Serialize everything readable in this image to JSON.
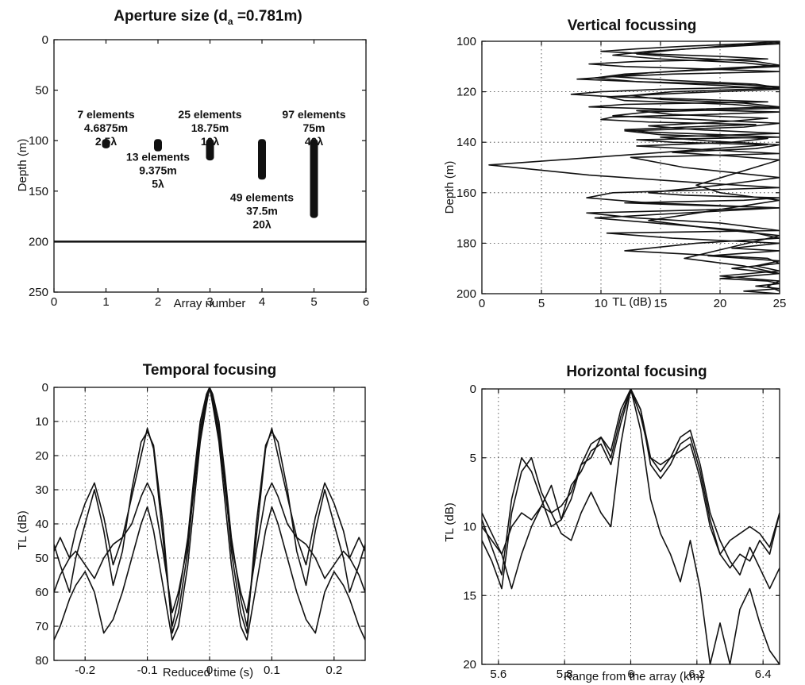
{
  "chart_data": [
    {
      "type": "scatter",
      "title": "Aperture size (d",
      "title_sub": "a",
      "title_tail": " =0.781m)",
      "xlabel": "Array number",
      "ylabel": "Depth (m)",
      "xlim": [
        0,
        6
      ],
      "ylim": [
        250,
        0
      ],
      "xticks": [
        0,
        1,
        2,
        3,
        4,
        5,
        6
      ],
      "yticks": [
        0,
        50,
        100,
        150,
        200,
        250
      ],
      "grid": false,
      "hline": 200,
      "series": [
        {
          "x": 1,
          "depth_from": 100,
          "depth_to": 106
        },
        {
          "x": 2,
          "depth_from": 100,
          "depth_to": 109
        },
        {
          "x": 3,
          "depth_from": 100,
          "depth_to": 118
        },
        {
          "x": 4,
          "depth_from": 100,
          "depth_to": 137
        },
        {
          "x": 5,
          "depth_from": 100,
          "depth_to": 175
        }
      ],
      "annotations": [
        {
          "x": 1.0,
          "y": 78,
          "lines": [
            "7 elements",
            "4.6875m",
            "2.5λ"
          ]
        },
        {
          "x": 2.0,
          "y": 120,
          "lines": [
            "13 elements",
            "9.375m",
            "5λ"
          ]
        },
        {
          "x": 3.0,
          "y": 78,
          "lines": [
            "25 elements",
            "18.75m",
            "10λ"
          ]
        },
        {
          "x": 4.0,
          "y": 160,
          "lines": [
            "49 elements",
            "37.5m",
            "20λ"
          ]
        },
        {
          "x": 5.0,
          "y": 78,
          "lines": [
            "97 elements",
            "75m",
            "40λ"
          ]
        }
      ]
    },
    {
      "type": "line",
      "title": "Vertical focussing",
      "xlabel": "TL (dB)",
      "ylabel": "Depth (m)",
      "xlim": [
        0,
        25
      ],
      "ylim": [
        200,
        100
      ],
      "xticks": [
        0,
        5,
        10,
        15,
        20,
        25
      ],
      "yticks": [
        100,
        120,
        140,
        160,
        180,
        200
      ],
      "grid": true,
      "series": [
        {
          "x": [
            25,
            22,
            17,
            13,
            10,
            14,
            20,
            24,
            13,
            9,
            12,
            19,
            25,
            16,
            11,
            8,
            13,
            21,
            25,
            15,
            10,
            7.5,
            11,
            18,
            24,
            12,
            9,
            16,
            25,
            19,
            11,
            10,
            14,
            23,
            17,
            12,
            14,
            20,
            25,
            13,
            16,
            24,
            0.6,
            9,
            18,
            25,
            11,
            8.8,
            14,
            25,
            17,
            9.5,
            22,
            25,
            18,
            12,
            24,
            25,
            21,
            25,
            20,
            24,
            25,
            23,
            25,
            22,
            25
          ],
          "y": [
            100,
            101,
            102,
            103,
            104,
            105,
            106,
            107,
            108,
            109,
            110,
            111,
            112,
            113,
            114,
            115,
            116,
            117,
            118,
            119,
            120,
            121,
            122,
            123,
            124,
            125,
            126,
            127,
            128,
            129,
            130,
            131,
            132,
            133,
            134,
            135,
            136,
            137,
            138,
            139,
            140,
            141,
            149,
            153,
            156,
            158,
            160,
            162,
            164,
            166,
            168,
            170,
            175,
            178,
            180,
            183,
            186,
            188,
            190,
            192,
            194,
            195,
            196,
            197,
            198,
            199,
            200
          ]
        },
        {
          "x": [
            25,
            19,
            14,
            11,
            15,
            22,
            25,
            18,
            12,
            9.5,
            13,
            20,
            25,
            17,
            10.5,
            12,
            21,
            25,
            14,
            11,
            18,
            25,
            22,
            12,
            15,
            24,
            21,
            13,
            19,
            25,
            12.5,
            17,
            25,
            20,
            14,
            17,
            25,
            22,
            12,
            18,
            25,
            8.8,
            13,
            20,
            25,
            10.5,
            16,
            25,
            21,
            25,
            19,
            25,
            23,
            25,
            20,
            25,
            24,
            25
          ],
          "y": [
            101,
            102.5,
            104,
            105.5,
            107,
            108.5,
            110,
            111.5,
            113,
            114.5,
            116,
            117.5,
            119,
            120.5,
            122,
            123.5,
            125,
            126.5,
            128,
            129.5,
            131,
            132.5,
            134,
            135.5,
            137,
            138.5,
            140,
            141.5,
            143,
            144.5,
            146,
            150,
            154,
            157,
            160,
            161,
            162,
            163,
            164,
            165,
            166,
            168,
            170,
            172,
            175,
            176,
            178,
            180,
            182,
            183,
            185,
            187,
            189,
            191,
            193,
            195,
            197,
            199
          ]
        },
        {
          "x": [
            25,
            20,
            16,
            13,
            17,
            23,
            25,
            19,
            14,
            11,
            16,
            23,
            25,
            16,
            12.5,
            15,
            22,
            25,
            13,
            16,
            24,
            20,
            14,
            18,
            25,
            15,
            19,
            25,
            23,
            16,
            21,
            25,
            18,
            20,
            25,
            14,
            19,
            25,
            17,
            22,
            25
          ],
          "y": [
            100.5,
            102,
            103.5,
            105,
            106.5,
            108,
            109.5,
            111,
            112.5,
            114,
            115.5,
            117,
            118.5,
            120,
            121.5,
            123,
            124.5,
            126,
            127.5,
            129,
            130.5,
            132,
            133.5,
            135,
            136.5,
            138,
            139.5,
            141,
            142.5,
            144,
            145.5,
            147,
            157,
            160,
            163,
            171,
            174,
            177,
            186,
            189,
            192
          ]
        }
      ]
    },
    {
      "type": "line",
      "title": "Temporal focusing",
      "xlabel": "Reduced time (s)",
      "ylabel": "TL (dB)",
      "xlim": [
        -0.25,
        0.25
      ],
      "ylim": [
        80,
        0
      ],
      "xticks": [
        -0.2,
        -0.1,
        0,
        0.1,
        0.2
      ],
      "yticks": [
        0,
        10,
        20,
        30,
        40,
        50,
        60,
        70,
        80
      ],
      "grid": true,
      "series": [
        {
          "x": [
            -0.25,
            -0.24,
            -0.225,
            -0.215,
            -0.2,
            -0.185,
            -0.17,
            -0.155,
            -0.14,
            -0.125,
            -0.11,
            -0.1,
            -0.09,
            -0.075,
            -0.06,
            -0.05,
            -0.035,
            -0.025,
            -0.015,
            -0.005,
            0,
            0.005,
            0.015,
            0.025,
            0.035,
            0.05,
            0.06,
            0.075,
            0.09,
            0.1,
            0.11,
            0.125,
            0.14,
            0.155,
            0.17,
            0.185,
            0.2,
            0.215,
            0.225,
            0.24,
            0.25
          ],
          "y": [
            46,
            52,
            60,
            50,
            40,
            30,
            42,
            58,
            48,
            30,
            16,
            13,
            17,
            40,
            72,
            66,
            48,
            28,
            12,
            3,
            0,
            3,
            12,
            28,
            48,
            66,
            72,
            40,
            17,
            13,
            16,
            30,
            48,
            58,
            42,
            30,
            40,
            50,
            60,
            52,
            46
          ]
        },
        {
          "x": [
            -0.25,
            -0.24,
            -0.225,
            -0.215,
            -0.2,
            -0.185,
            -0.17,
            -0.155,
            -0.14,
            -0.125,
            -0.11,
            -0.1,
            -0.09,
            -0.075,
            -0.06,
            -0.05,
            -0.035,
            -0.025,
            -0.015,
            -0.005,
            0,
            0.005,
            0.015,
            0.025,
            0.035,
            0.05,
            0.06,
            0.075,
            0.09,
            0.1,
            0.11,
            0.125,
            0.14,
            0.155,
            0.17,
            0.185,
            0.2,
            0.215,
            0.225,
            0.24,
            0.25
          ],
          "y": [
            48,
            44,
            50,
            42,
            34,
            28,
            38,
            52,
            44,
            32,
            20,
            12,
            18,
            44,
            70,
            62,
            44,
            26,
            10,
            2,
            0,
            2,
            10,
            26,
            44,
            62,
            70,
            44,
            18,
            12,
            20,
            32,
            44,
            52,
            38,
            28,
            34,
            42,
            50,
            44,
            48
          ]
        },
        {
          "x": [
            -0.25,
            -0.24,
            -0.225,
            -0.215,
            -0.2,
            -0.185,
            -0.17,
            -0.155,
            -0.14,
            -0.125,
            -0.11,
            -0.1,
            -0.09,
            -0.075,
            -0.06,
            -0.05,
            -0.035,
            -0.025,
            -0.015,
            -0.005,
            0,
            0.005,
            0.015,
            0.025,
            0.035,
            0.05,
            0.06,
            0.075,
            0.09,
            0.1,
            0.11,
            0.125,
            0.14,
            0.155,
            0.17,
            0.185,
            0.2,
            0.215,
            0.225,
            0.24,
            0.25
          ],
          "y": [
            60,
            55,
            50,
            48,
            52,
            56,
            50,
            46,
            44,
            40,
            32,
            28,
            32,
            48,
            66,
            60,
            46,
            30,
            14,
            4,
            0,
            4,
            14,
            30,
            46,
            60,
            66,
            48,
            32,
            28,
            32,
            40,
            44,
            46,
            50,
            56,
            52,
            48,
            50,
            55,
            60
          ]
        },
        {
          "x": [
            -0.25,
            -0.24,
            -0.225,
            -0.215,
            -0.2,
            -0.185,
            -0.17,
            -0.155,
            -0.14,
            -0.125,
            -0.11,
            -0.1,
            -0.09,
            -0.075,
            -0.06,
            -0.05,
            -0.035,
            -0.025,
            -0.015,
            -0.005,
            0,
            0.005,
            0.015,
            0.025,
            0.035,
            0.05,
            0.06,
            0.075,
            0.09,
            0.1,
            0.11,
            0.125,
            0.14,
            0.155,
            0.17,
            0.185,
            0.2,
            0.215,
            0.225,
            0.24,
            0.25
          ],
          "y": [
            74,
            70,
            62,
            58,
            54,
            60,
            72,
            68,
            60,
            50,
            40,
            35,
            42,
            58,
            74,
            70,
            52,
            34,
            16,
            5,
            0,
            5,
            16,
            34,
            52,
            70,
            74,
            58,
            42,
            35,
            40,
            50,
            60,
            68,
            72,
            60,
            54,
            58,
            62,
            70,
            74
          ]
        }
      ]
    },
    {
      "type": "line",
      "title": "Horizontal focusing",
      "xlabel": "Range from the array (km)",
      "ylabel": "TL (dB)",
      "xlim": [
        5.55,
        6.45
      ],
      "ylim": [
        20,
        0
      ],
      "xticks": [
        5.6,
        5.8,
        6,
        6.2,
        6.4
      ],
      "yticks": [
        0,
        5,
        10,
        15,
        20
      ],
      "grid": true,
      "series": [
        {
          "x": [
            5.55,
            5.58,
            5.61,
            5.64,
            5.67,
            5.7,
            5.73,
            5.76,
            5.79,
            5.82,
            5.85,
            5.88,
            5.91,
            5.94,
            5.97,
            6.0,
            6.03,
            6.06,
            6.09,
            6.12,
            6.15,
            6.18,
            6.21,
            6.24,
            6.27,
            6.3,
            6.33,
            6.36,
            6.39,
            6.42,
            6.45
          ],
          "y": [
            9.5,
            11.5,
            13.5,
            8,
            5,
            6,
            8,
            10,
            9.5,
            7,
            6,
            4.5,
            4,
            5.5,
            2.5,
            0,
            1.5,
            5,
            6,
            5,
            3.5,
            3,
            5.5,
            9,
            11,
            12.5,
            13.5,
            11.5,
            13,
            14.5,
            13
          ]
        },
        {
          "x": [
            5.55,
            5.58,
            5.61,
            5.64,
            5.67,
            5.7,
            5.73,
            5.76,
            5.79,
            5.82,
            5.85,
            5.88,
            5.91,
            5.94,
            5.97,
            6.0,
            6.03,
            6.06,
            6.09,
            6.12,
            6.15,
            6.18,
            6.21,
            6.24,
            6.27,
            6.3,
            6.33,
            6.36,
            6.39,
            6.42,
            6.45
          ],
          "y": [
            11,
            12.5,
            14.5,
            9,
            6,
            5,
            7.5,
            9,
            8.5,
            7.5,
            5.5,
            4,
            3.5,
            5,
            2,
            0,
            1.5,
            5.5,
            6.5,
            5.5,
            4,
            3.5,
            6,
            9.5,
            12,
            13,
            12,
            12.5,
            11,
            12,
            9
          ]
        },
        {
          "x": [
            5.55,
            5.58,
            5.61,
            5.64,
            5.67,
            5.7,
            5.73,
            5.76,
            5.79,
            5.82,
            5.85,
            5.88,
            5.91,
            5.94,
            5.97,
            6.0,
            6.03,
            6.06,
            6.09,
            6.12,
            6.15,
            6.18,
            6.21,
            6.24,
            6.27,
            6.3,
            6.33,
            6.36,
            6.39,
            6.42,
            6.45
          ],
          "y": [
            10,
            11,
            12,
            10,
            9,
            9.5,
            8.5,
            7,
            9.5,
            8,
            5.5,
            5,
            3.5,
            4.5,
            1.5,
            0,
            2,
            5,
            5.5,
            5,
            4.5,
            4,
            6.5,
            10,
            12,
            11,
            10.5,
            10,
            10.5,
            11.5,
            9
          ]
        },
        {
          "x": [
            5.55,
            5.58,
            5.61,
            5.64,
            5.67,
            5.7,
            5.73,
            5.76,
            5.79,
            5.82,
            5.85,
            5.88,
            5.91,
            5.94,
            5.97,
            6.0,
            6.03,
            6.06,
            6.09,
            6.12,
            6.15,
            6.18,
            6.21,
            6.24,
            6.27,
            6.3,
            6.33,
            6.36,
            6.39,
            6.42,
            6.45
          ],
          "y": [
            9,
            10.5,
            12,
            14.5,
            12,
            10,
            8.5,
            9,
            10.5,
            11,
            9,
            7.5,
            9,
            10,
            4,
            0,
            3,
            8,
            10.5,
            12,
            14,
            11,
            14.5,
            20,
            17,
            20,
            16,
            14.5,
            17,
            19,
            20
          ]
        }
      ]
    }
  ]
}
